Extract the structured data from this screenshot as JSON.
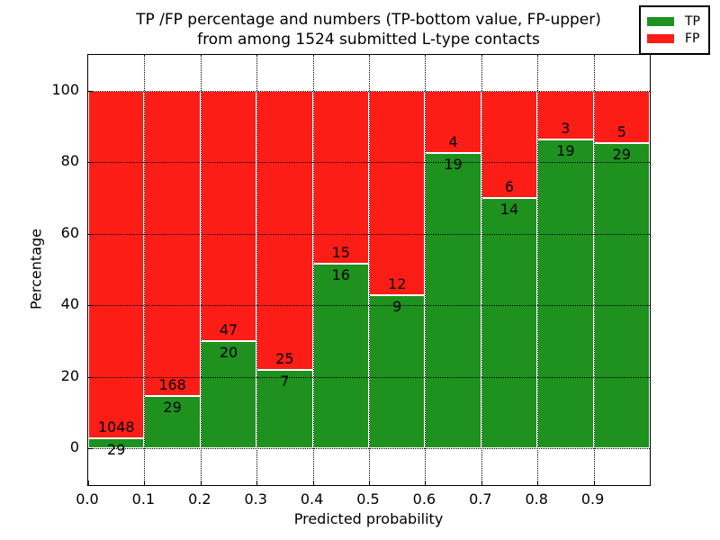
{
  "title": {
    "line1": "TP /FP percentage and numbers (TP-bottom value, FP-upper)",
    "line2": "from among 1524 submitted L-type contacts"
  },
  "chart_data": {
    "type": "bar",
    "stacked": true,
    "normalized_to_percent": true,
    "title": "TP /FP percentage and numbers (TP-bottom value, FP-upper) from among 1524 submitted L-type contacts",
    "xlabel": "Predicted probability",
    "ylabel": "Percentage",
    "x_tick_labels": [
      "0.0",
      "0.1",
      "0.2",
      "0.3",
      "0.4",
      "0.5",
      "0.6",
      "0.7",
      "0.8",
      "0.9"
    ],
    "y_ticks": [
      0,
      20,
      40,
      60,
      80,
      100
    ],
    "xlim": [
      0.0,
      1.0
    ],
    "ylim": [
      -10,
      110
    ],
    "bin_width": 0.1,
    "bin_edges": [
      0.0,
      0.1,
      0.2,
      0.3,
      0.4,
      0.5,
      0.6,
      0.7,
      0.8,
      0.9,
      1.0
    ],
    "grid": {
      "visible": true,
      "linestyle": "dotted",
      "color": "#000000"
    },
    "series": [
      {
        "name": "TP",
        "color": "#1e911e",
        "counts": [
          29,
          29,
          20,
          7,
          16,
          9,
          19,
          14,
          19,
          29
        ]
      },
      {
        "name": "FP",
        "color": "#fc1d17",
        "counts": [
          1048,
          168,
          47,
          25,
          15,
          12,
          4,
          6,
          3,
          5
        ]
      }
    ],
    "total_contacts": 1524,
    "legend": {
      "position": "upper right",
      "entries": [
        {
          "label": "TP",
          "color": "#1e911e"
        },
        {
          "label": "FP",
          "color": "#fc1d17"
        }
      ]
    }
  }
}
